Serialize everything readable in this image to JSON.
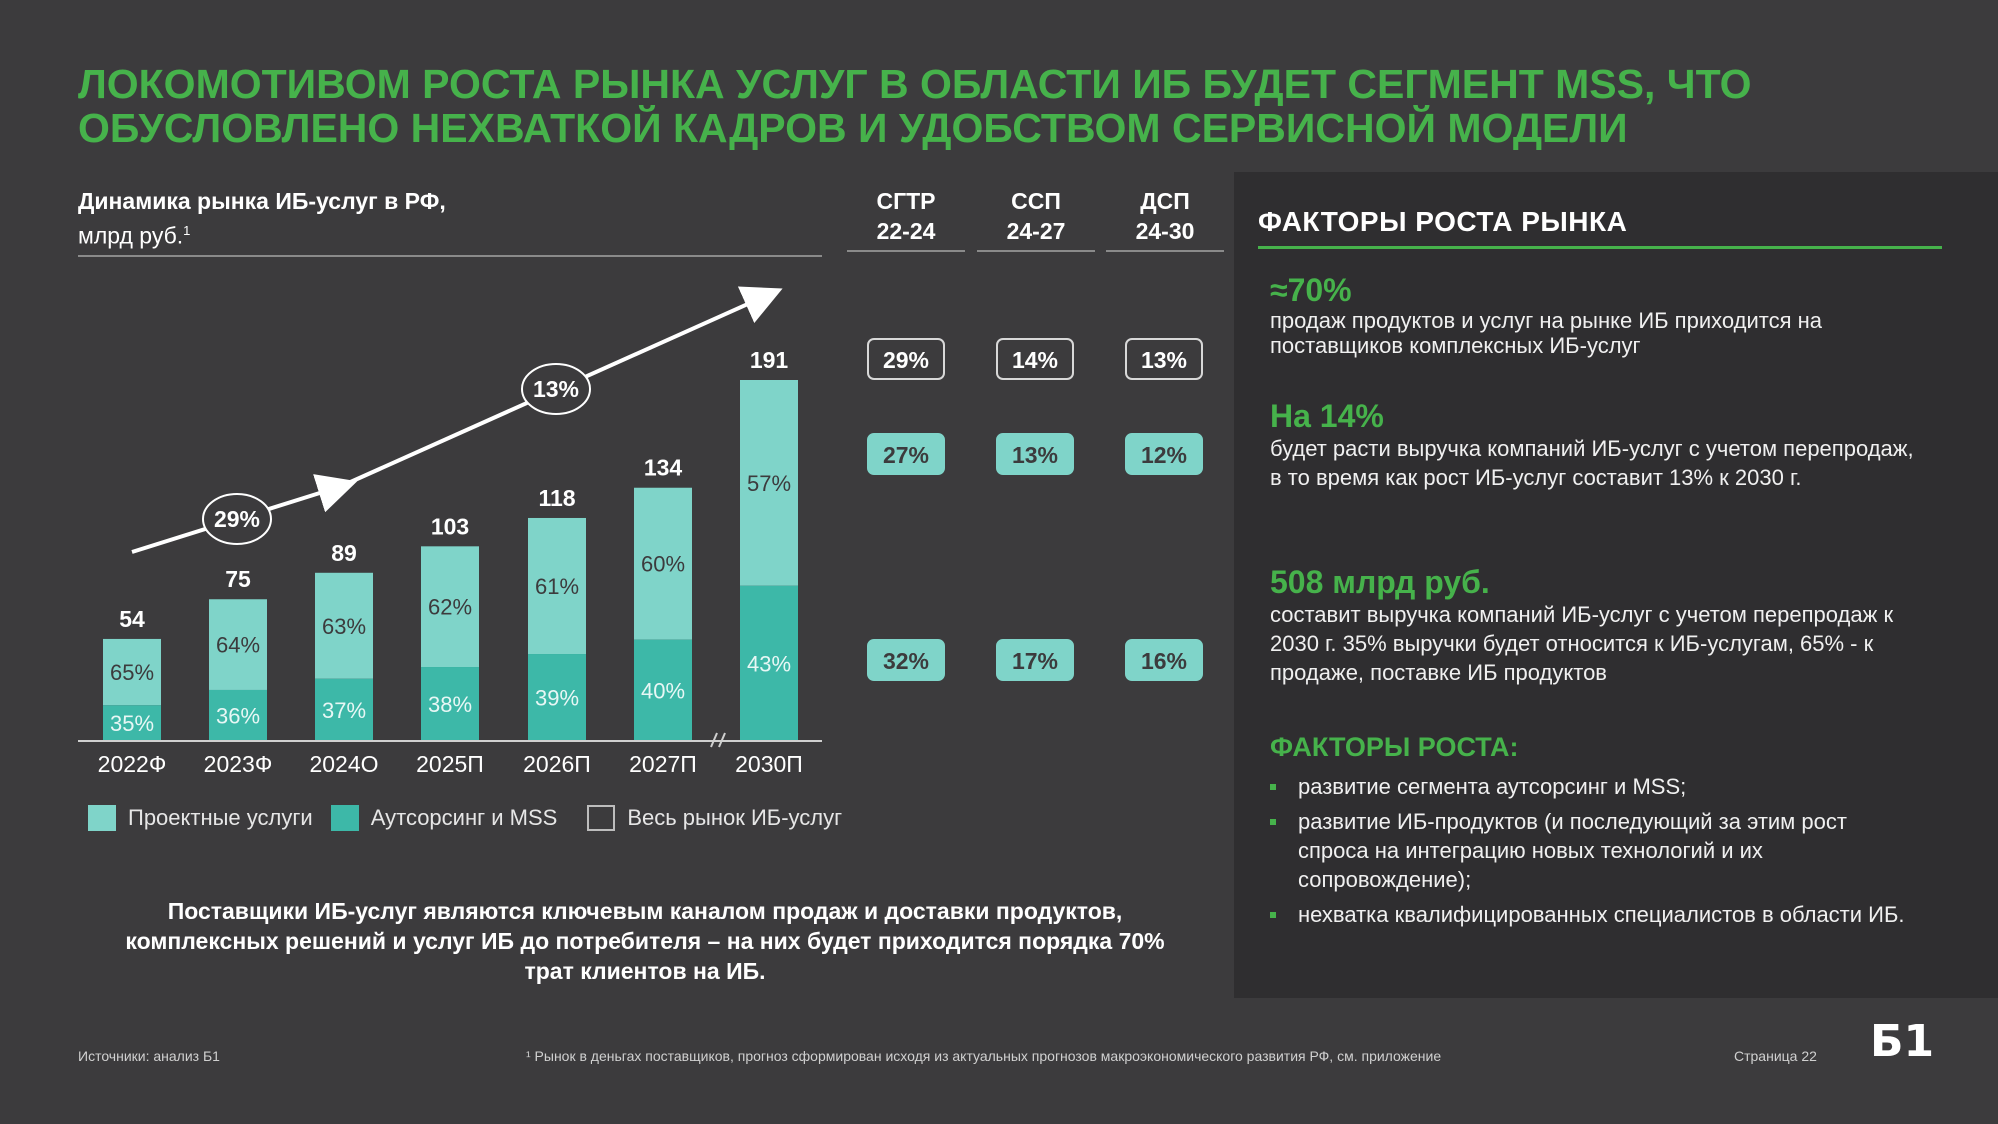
{
  "title": "ЛОКОМОТИВОМ РОСТА РЫНКА УСЛУГ В ОБЛАСТИ ИБ БУДЕТ СЕГМЕНТ MSS, ЧТО ОБУСЛОВЛЕНО НЕХВАТКОЙ КАДРОВ И УДОБСТВОМ СЕРВИСНОЙ МОДЕЛИ",
  "chart_heading": {
    "line1": "Динамика рынка ИБ-услуг в РФ,",
    "line2": "млрд руб.",
    "footnote_mark": "1"
  },
  "colors": {
    "accent_green": "#46b24b",
    "project_services": "#7fd4c9",
    "outsourcing_mss": "#3db8a8",
    "background": "#3c3b3d",
    "panel": "#2f2e30"
  },
  "chart_data": {
    "type": "bar",
    "stacked": true,
    "categories": [
      "2022Ф",
      "2023Ф",
      "2024О",
      "2025П",
      "2026П",
      "2027П",
      "2030П"
    ],
    "totals": [
      54,
      75,
      89,
      103,
      118,
      134,
      191
    ],
    "series": [
      {
        "name": "Аутсорсинг и MSS",
        "color": "#3db8a8",
        "share_labels": [
          "35%",
          "36%",
          "37%",
          "38%",
          "39%",
          "40%",
          "43%"
        ],
        "shares": [
          35,
          36,
          37,
          38,
          39,
          40,
          43
        ]
      },
      {
        "name": "Проектные услуги",
        "color": "#7fd4c9",
        "share_labels": [
          "65%",
          "64%",
          "63%",
          "62%",
          "61%",
          "60%",
          "57%"
        ],
        "shares": [
          65,
          64,
          63,
          62,
          61,
          60,
          57
        ]
      }
    ],
    "total_series_name": "Весь рынок ИБ-услуг",
    "ylim": [
      0,
      200
    ],
    "axis_break_between": [
      "2027П",
      "2030П"
    ],
    "growth_labels": [
      "29%",
      "13%"
    ],
    "legend_position": "bottom"
  },
  "cagr": {
    "columns": [
      {
        "line1": "СГТР",
        "line2": "22-24"
      },
      {
        "line1": "ССП",
        "line2": "24-27"
      },
      {
        "line1": "ДСП",
        "line2": "24-30"
      }
    ],
    "rows": [
      {
        "style": "outline",
        "values": [
          "29%",
          "14%",
          "13%"
        ]
      },
      {
        "style": "light",
        "values": [
          "27%",
          "13%",
          "12%"
        ]
      },
      {
        "style": "light",
        "values": [
          "32%",
          "17%",
          "16%"
        ]
      }
    ]
  },
  "legend": [
    {
      "label": "Проектные услуги",
      "style": "light"
    },
    {
      "label": "Аутсорсинг и MSS",
      "style": "dark"
    },
    {
      "label": "Весь рынок ИБ-услуг",
      "style": "outline"
    }
  ],
  "bottom_note": "Поставщики ИБ-услуг являются ключевым каналом продаж и доставки продуктов, комплексных решений и услуг ИБ до потребителя – на них будет приходится порядка 70% трат клиентов на ИБ.",
  "panel": {
    "title": "ФАКТОРЫ РОСТА РЫНКА",
    "facts": [
      {
        "big": "≈70%",
        "desc": "продаж продуктов и услуг на рынке ИБ приходится на поставщиков комплексных ИБ-услуг"
      },
      {
        "big": "На 14%",
        "desc": "будет расти выручка компаний ИБ-услуг с учетом перепродаж, в то время как рост ИБ-услуг составит 13% к 2030 г."
      },
      {
        "big": "508 млрд руб.",
        "desc": "составит выручка компаний ИБ-услуг с учетом перепродаж к 2030 г. 35% выручки будет относится к ИБ-услугам, 65% -  к продаже, поставке ИБ продуктов"
      }
    ],
    "factors_title": "ФАКТОРЫ РОСТА:",
    "factors": [
      "развитие сегмента аутсорсинг и MSS;",
      "развитие ИБ-продуктов (и последующий за этим рост спроса на интеграцию новых технологий и их сопровождение);",
      "нехватка квалифицированных специалистов в области ИБ."
    ]
  },
  "footer": {
    "sources": "Источники: анализ Б1",
    "footnote": "¹ Рынок в деньгах поставщиков, прогноз сформирован исходя из актуальных прогнозов макроэкономического развития РФ, см. приложение",
    "page": "Страница 22",
    "logo": "Б1"
  }
}
